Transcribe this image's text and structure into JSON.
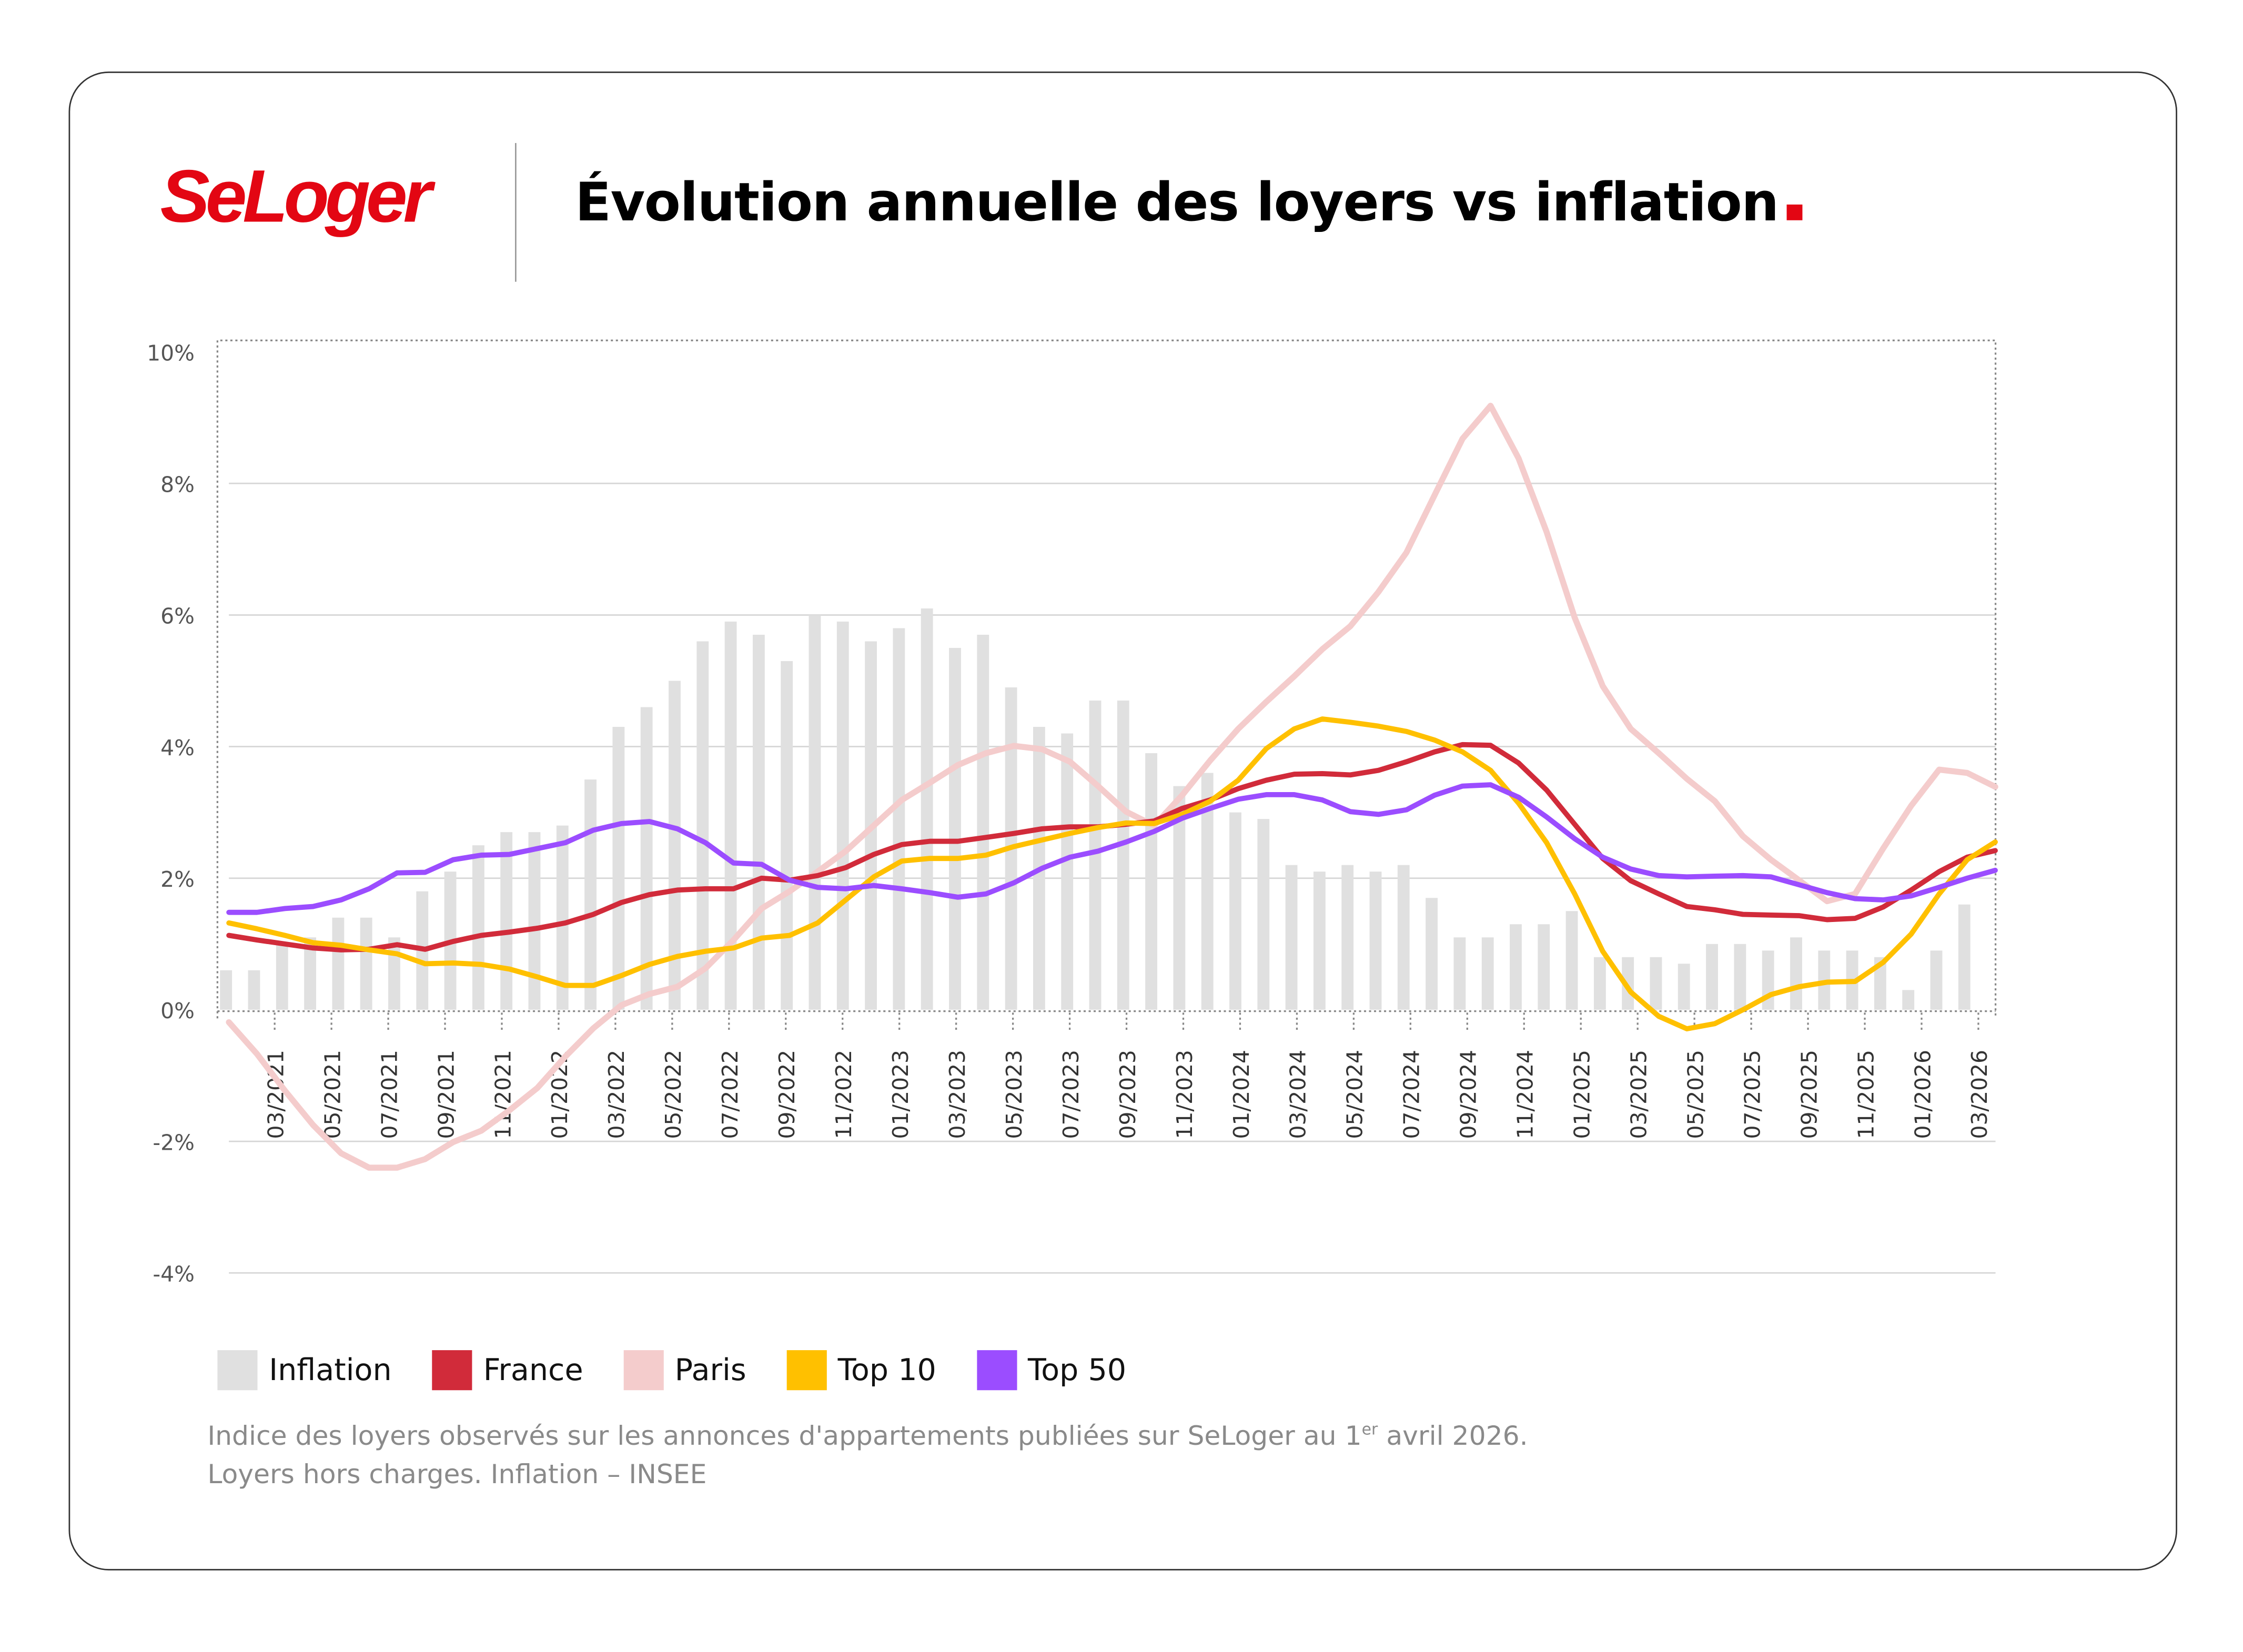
{
  "logo": "SeLoger",
  "title": "Évolution annuelle des loyers vs inflation",
  "footnote": {
    "line1_pre": "Indice des loyers observés sur les annonces d'appartements publiées sur SeLoger au 1",
    "line1_sup": "er",
    "line1_post": " avril 2026.",
    "line2": "Loyers hors charges. Inflation – INSEE"
  },
  "colors": {
    "brand": "#e30613",
    "inflation": "#e0e0e0",
    "france": "#d12b3a",
    "paris": "#f4cccc",
    "top10": "#ffc000",
    "top50": "#9b4dff"
  },
  "chart_data": {
    "type": "line+bar",
    "title": "Évolution annuelle des loyers vs inflation",
    "xlabel": "",
    "ylabel": "",
    "ylim": [
      -4,
      10
    ],
    "y_ticks": [
      "10%",
      "8%",
      "6%",
      "4%",
      "2%",
      "0%",
      "-2%",
      "-4%"
    ],
    "y_tick_values": [
      10,
      8,
      6,
      4,
      2,
      0,
      -2,
      -4
    ],
    "x_start": "01/2021",
    "x_end": "04/2026",
    "x_tick_labels": [
      "03/2021",
      "05/2021",
      "07/2021",
      "09/2021",
      "11/2021",
      "01/2022",
      "03/2022",
      "05/2022",
      "07/2022",
      "09/2022",
      "11/2022",
      "01/2023",
      "03/2023",
      "05/2023",
      "07/2023",
      "09/2023",
      "11/2023",
      "01/2024",
      "03/2024",
      "05/2024",
      "07/2024",
      "09/2024",
      "11/2024",
      "01/2025",
      "03/2025",
      "05/2025",
      "07/2025",
      "09/2025",
      "11/2025",
      "01/2026",
      "03/2026"
    ],
    "grid": true,
    "legend_position": "bottom-left",
    "legend": [
      "Inflation",
      "France",
      "Paris",
      "Top 10",
      "Top 50"
    ],
    "bars": {
      "name": "Inflation",
      "values": [
        0.6,
        0.6,
        1.0,
        1.1,
        1.4,
        1.4,
        1.1,
        1.8,
        2.1,
        2.5,
        2.7,
        2.7,
        2.8,
        3.5,
        4.3,
        4.6,
        5.0,
        5.6,
        5.9,
        5.7,
        5.3,
        6.0,
        5.9,
        5.6,
        5.8,
        6.1,
        5.5,
        5.7,
        4.9,
        4.3,
        4.2,
        4.7,
        4.7,
        3.9,
        3.4,
        3.6,
        3.0,
        2.9,
        2.2,
        2.1,
        2.2,
        2.1,
        2.2,
        1.7,
        1.1,
        1.1,
        1.3,
        1.3,
        1.5,
        0.8,
        0.8,
        0.8,
        0.7,
        1.0,
        1.0,
        0.9,
        1.1,
        0.9,
        0.9,
        0.8,
        0.3,
        0.9,
        1.6
      ]
    },
    "series": [
      {
        "name": "France",
        "key": "france",
        "values": [
          1.13,
          1.06,
          1.0,
          0.94,
          0.91,
          0.92,
          0.99,
          0.92,
          1.04,
          1.13,
          1.18,
          1.24,
          1.32,
          1.45,
          1.63,
          1.75,
          1.82,
          1.84,
          1.84,
          2.0,
          1.97,
          2.04,
          2.16,
          2.36,
          2.51,
          2.56,
          2.56,
          2.62,
          2.68,
          2.75,
          2.78,
          2.78,
          2.82,
          2.87,
          3.06,
          3.19,
          3.36,
          3.49,
          3.58,
          3.59,
          3.57,
          3.64,
          3.77,
          3.92,
          4.03,
          4.02,
          3.75,
          3.34,
          2.82,
          2.3,
          1.96,
          1.76,
          1.57,
          1.52,
          1.45,
          1.44,
          1.43,
          1.37,
          1.39,
          1.56,
          1.82,
          2.1,
          2.32,
          2.42
        ]
      },
      {
        "name": "Paris",
        "key": "paris",
        "values": [
          -0.19,
          -0.67,
          -1.23,
          -1.75,
          -2.18,
          -2.4,
          -2.4,
          -2.27,
          -2.01,
          -1.84,
          -1.53,
          -1.19,
          -0.71,
          -0.28,
          0.07,
          0.24,
          0.35,
          0.63,
          1.06,
          1.54,
          1.8,
          2.1,
          2.41,
          2.8,
          3.19,
          3.45,
          3.72,
          3.9,
          4.01,
          3.96,
          3.77,
          3.4,
          3.01,
          2.8,
          3.26,
          3.79,
          4.27,
          4.68,
          5.07,
          5.48,
          5.83,
          6.35,
          6.95,
          7.82,
          8.68,
          9.18,
          8.38,
          7.26,
          5.96,
          4.92,
          4.27,
          3.9,
          3.51,
          3.17,
          2.64,
          2.28,
          1.97,
          1.65,
          1.76,
          2.45,
          3.1,
          3.65,
          3.6,
          3.39
        ]
      },
      {
        "name": "Top 10",
        "key": "top10",
        "values": [
          1.32,
          1.23,
          1.13,
          1.02,
          0.98,
          0.91,
          0.85,
          0.7,
          0.71,
          0.69,
          0.62,
          0.5,
          0.37,
          0.37,
          0.52,
          0.69,
          0.81,
          0.89,
          0.94,
          1.09,
          1.13,
          1.32,
          1.67,
          2.02,
          2.26,
          2.3,
          2.3,
          2.35,
          2.48,
          2.58,
          2.68,
          2.77,
          2.84,
          2.83,
          2.97,
          3.17,
          3.49,
          3.97,
          4.27,
          4.42,
          4.37,
          4.31,
          4.23,
          4.1,
          3.92,
          3.64,
          3.14,
          2.54,
          1.76,
          0.89,
          0.27,
          -0.1,
          -0.29,
          -0.21,
          0.0,
          0.23,
          0.35,
          0.42,
          0.43,
          0.72,
          1.15,
          1.76,
          2.28,
          2.55
        ]
      },
      {
        "name": "Top 50",
        "key": "top50",
        "values": [
          1.48,
          1.48,
          1.54,
          1.57,
          1.67,
          1.84,
          2.08,
          2.09,
          2.28,
          2.35,
          2.36,
          2.45,
          2.54,
          2.73,
          2.83,
          2.86,
          2.75,
          2.54,
          2.23,
          2.21,
          1.97,
          1.86,
          1.84,
          1.89,
          1.84,
          1.78,
          1.71,
          1.76,
          1.93,
          2.15,
          2.32,
          2.41,
          2.55,
          2.71,
          2.91,
          3.06,
          3.2,
          3.27,
          3.27,
          3.19,
          3.01,
          2.97,
          3.04,
          3.26,
          3.4,
          3.42,
          3.23,
          2.93,
          2.6,
          2.32,
          2.14,
          2.04,
          2.02,
          2.03,
          2.04,
          2.02,
          1.9,
          1.78,
          1.69,
          1.67,
          1.73,
          1.86,
          2.0,
          2.12
        ]
      }
    ]
  }
}
